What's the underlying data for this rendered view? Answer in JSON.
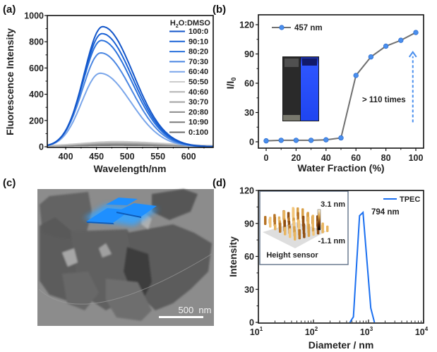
{
  "figure": {
    "panel_labels": [
      "(a)",
      "(b)",
      "(c)",
      "(d)"
    ]
  },
  "chart_data": [
    {
      "panel": "(a)",
      "type": "line",
      "xlabel": "Wavelength/nm",
      "ylabel": "Fluorescence Intensity",
      "xlim": [
        370,
        640
      ],
      "ylim": [
        0,
        1000
      ],
      "xticks": [
        400,
        450,
        500,
        550,
        600
      ],
      "yticks": [
        0,
        200,
        400,
        600,
        800,
        1000
      ],
      "legend_title": "H2O:DMSO",
      "legend_position": "top-right",
      "series": [
        {
          "name": "100:0",
          "peak_x": 460,
          "peak_y": 915,
          "color": "#1356c9"
        },
        {
          "name": "90:10",
          "peak_x": 459,
          "peak_y": 862,
          "color": "#1a62d6"
        },
        {
          "name": "80:20",
          "peak_x": 458,
          "peak_y": 810,
          "color": "#2b72dc"
        },
        {
          "name": "70:30",
          "peak_x": 457,
          "peak_y": 715,
          "color": "#4a86e2"
        },
        {
          "name": "60:40",
          "peak_x": 456,
          "peak_y": 560,
          "color": "#7aa6ea"
        },
        {
          "name": "50:50",
          "peak_x": 482,
          "peak_y": 40,
          "color": "#cccccc"
        },
        {
          "name": "40:60",
          "peak_x": 482,
          "peak_y": 32,
          "color": "#b4b4b4"
        },
        {
          "name": "30:70",
          "peak_x": 482,
          "peak_y": 26,
          "color": "#a0a0a0"
        },
        {
          "name": "20:80",
          "peak_x": 482,
          "peak_y": 20,
          "color": "#8c8c8c"
        },
        {
          "name": "10:90",
          "peak_x": 482,
          "peak_y": 14,
          "color": "#7a7a7a"
        },
        {
          "name": "0:100",
          "peak_x": 482,
          "peak_y": 10,
          "color": "#6a6a6a"
        }
      ]
    },
    {
      "panel": "(b)",
      "type": "line",
      "xlabel": "Water Fraction (%)",
      "ylabel": "I/I0",
      "xlim": [
        -5,
        105
      ],
      "ylim": [
        -4,
        130
      ],
      "xticks": [
        0,
        20,
        40,
        60,
        80,
        100
      ],
      "yticks": [
        0,
        30,
        60,
        90,
        120
      ],
      "legend_position": "top-left",
      "series": [
        {
          "name": "457 nm",
          "line_color": "#707070",
          "marker_color": "#4a8fee",
          "x": [
            0,
            10,
            20,
            30,
            40,
            50,
            60,
            70,
            80,
            90,
            100
          ],
          "y": [
            1,
            1.5,
            1.5,
            1.5,
            2,
            4,
            68,
            87,
            98,
            104,
            112
          ]
        }
      ],
      "annotations": [
        {
          "text": "> 110 times",
          "x": 85,
          "y": 46
        },
        {
          "type": "arrow",
          "x": 98,
          "y_from": 20,
          "y_to": 92,
          "color": "#4a8fee"
        }
      ],
      "inset": "cuvette-photos"
    },
    {
      "panel": "(d)",
      "type": "line",
      "xlabel": "Diameter / nm",
      "ylabel": "Intensity",
      "xscale": "log",
      "xlim": [
        10,
        10000
      ],
      "ylim": [
        0,
        120
      ],
      "xticks": [
        10,
        100,
        1000,
        10000
      ],
      "xtick_labels": [
        "10",
        "10",
        "10",
        "10"
      ],
      "xtick_exponents": [
        "1",
        "2",
        "3",
        "4"
      ],
      "yticks": [
        0,
        30,
        60,
        90,
        120
      ],
      "legend_position": "top-right",
      "series": [
        {
          "name": "TPEC",
          "color": "#1a6ff0",
          "x": [
            459,
            531,
            688,
            794,
            1100,
            1280
          ],
          "y": [
            0,
            5,
            97,
            100,
            13,
            0
          ]
        }
      ],
      "annotations": [
        {
          "text": "794 nm",
          "x": 1500,
          "y": 90
        }
      ],
      "inset": {
        "label": "Height sensor",
        "scale_max": "3.1 nm",
        "scale_min": "-1.1 nm"
      }
    }
  ],
  "panel_c": {
    "scale_bar": "500  nm"
  }
}
